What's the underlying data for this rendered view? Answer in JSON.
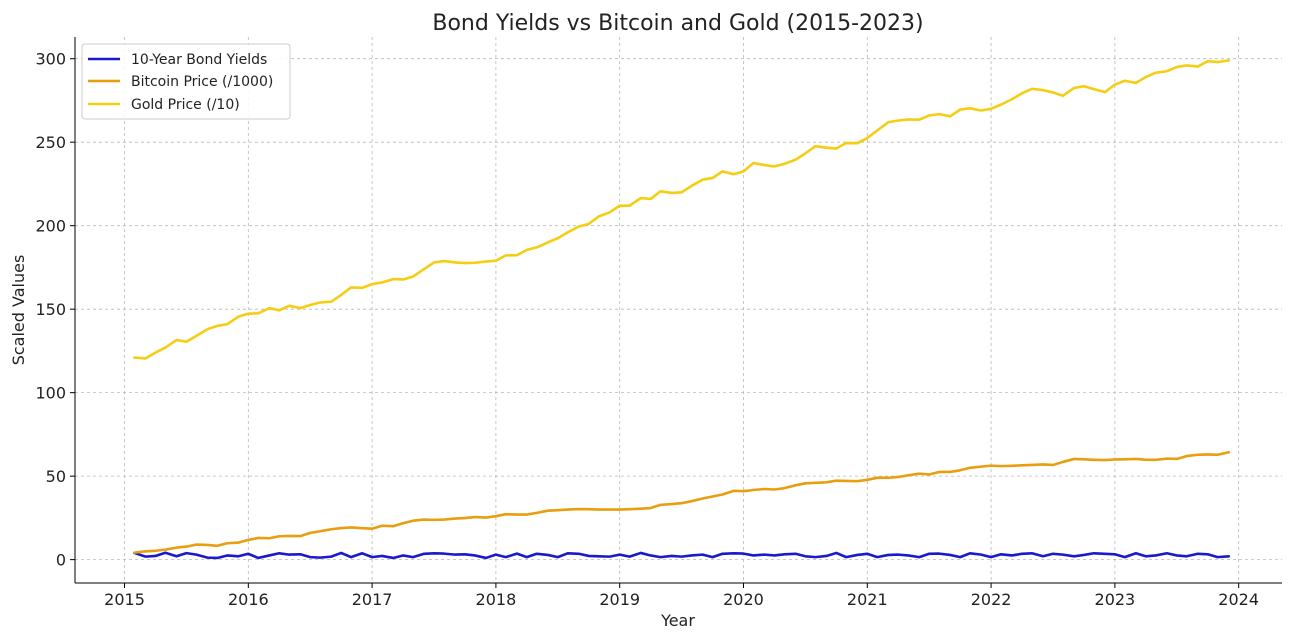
{
  "chart_data": {
    "type": "line",
    "title": "Bond Yields vs Bitcoin and Gold (2015-2023)",
    "xlabel": "Year",
    "ylabel": "Scaled Values",
    "xlim": [
      2014.6,
      2024.35
    ],
    "ylim": [
      -14,
      313
    ],
    "x_ticks": [
      2015,
      2016,
      2017,
      2018,
      2019,
      2020,
      2021,
      2022,
      2023,
      2024
    ],
    "x_tick_labels": [
      "2015",
      "2016",
      "2017",
      "2018",
      "2019",
      "2020",
      "2021",
      "2022",
      "2023",
      "2024"
    ],
    "y_ticks": [
      0,
      50,
      100,
      150,
      200,
      250,
      300
    ],
    "y_tick_labels": [
      "0",
      "50",
      "100",
      "150",
      "200",
      "250",
      "300"
    ],
    "grid": true,
    "legend_position": "upper-left",
    "series": [
      {
        "name": "10-Year Bond Yields",
        "color": "#1a1acc",
        "x": [
          2015.08,
          2015.17,
          2015.25,
          2015.33,
          2015.42,
          2015.5,
          2015.58,
          2015.67,
          2015.75,
          2015.83,
          2015.92,
          2016.0,
          2016.08,
          2016.17,
          2016.25,
          2016.33,
          2016.42,
          2016.5,
          2016.58,
          2016.67,
          2016.75,
          2016.83,
          2016.92,
          2017.0,
          2017.08,
          2017.17,
          2017.25,
          2017.33,
          2017.42,
          2017.5,
          2017.58,
          2017.67,
          2017.75,
          2017.83,
          2017.92,
          2018.0,
          2018.08,
          2018.17,
          2018.25,
          2018.33,
          2018.42,
          2018.5,
          2018.58,
          2018.67,
          2018.75,
          2018.83,
          2018.92,
          2019.0,
          2019.08,
          2019.17,
          2019.25,
          2019.33,
          2019.42,
          2019.5,
          2019.58,
          2019.67,
          2019.75,
          2019.83,
          2019.92,
          2020.0,
          2020.08,
          2020.17,
          2020.25,
          2020.33,
          2020.42,
          2020.5,
          2020.58,
          2020.67,
          2020.75,
          2020.83,
          2020.92,
          2021.0,
          2021.08,
          2021.17,
          2021.25,
          2021.33,
          2021.42,
          2021.5,
          2021.58,
          2021.67,
          2021.75,
          2021.83,
          2021.92,
          2022.0,
          2022.08,
          2022.17,
          2022.25,
          2022.33,
          2022.42,
          2022.5,
          2022.58,
          2022.67,
          2022.75,
          2022.83,
          2022.92,
          2023.0,
          2023.08,
          2023.17,
          2023.25,
          2023.33,
          2023.42,
          2023.5,
          2023.58,
          2023.67,
          2023.75,
          2023.83,
          2023.92
        ],
        "values": [
          4.0,
          1.8,
          2.2,
          4.1,
          2.0,
          3.9,
          3.0,
          1.2,
          1.0,
          2.5,
          2.0,
          3.5,
          1.0,
          2.5,
          3.8,
          3.0,
          3.2,
          1.5,
          1.2,
          1.8,
          4.0,
          1.5,
          3.8,
          1.5,
          2.2,
          1.0,
          2.5,
          1.5,
          3.5,
          3.8,
          3.6,
          3.0,
          3.2,
          2.5,
          1.0,
          3.0,
          1.5,
          3.6,
          1.5,
          3.5,
          2.8,
          1.5,
          3.8,
          3.5,
          2.2,
          2.0,
          1.8,
          3.0,
          1.8,
          4.0,
          2.5,
          1.5,
          2.2,
          1.8,
          2.5,
          3.0,
          1.5,
          3.5,
          3.8,
          3.6,
          2.5,
          3.0,
          2.5,
          3.2,
          3.5,
          2.0,
          1.5,
          2.2,
          4.0,
          1.5,
          2.8,
          3.5,
          1.5,
          2.8,
          3.0,
          2.5,
          1.5,
          3.5,
          3.6,
          2.8,
          1.5,
          3.8,
          3.0,
          1.5,
          3.2,
          2.5,
          3.5,
          3.8,
          2.0,
          3.5,
          3.0,
          2.0,
          2.8,
          3.8,
          3.5,
          3.2,
          1.5,
          3.8,
          2.0,
          2.5,
          3.8,
          2.5,
          2.0,
          3.5,
          3.2,
          1.5,
          2.0
        ]
      },
      {
        "name": "Bitcoin Price (/1000)",
        "color": "#e89e0f",
        "x": [
          2015.08,
          2015.17,
          2015.25,
          2015.33,
          2015.42,
          2015.5,
          2015.58,
          2015.67,
          2015.75,
          2015.83,
          2015.92,
          2016.0,
          2016.08,
          2016.17,
          2016.25,
          2016.33,
          2016.42,
          2016.5,
          2016.58,
          2016.67,
          2016.75,
          2016.83,
          2016.92,
          2017.0,
          2017.08,
          2017.17,
          2017.25,
          2017.33,
          2017.42,
          2017.5,
          2017.58,
          2017.67,
          2017.75,
          2017.83,
          2017.92,
          2018.0,
          2018.08,
          2018.17,
          2018.25,
          2018.33,
          2018.42,
          2018.5,
          2018.58,
          2018.67,
          2018.75,
          2018.83,
          2018.92,
          2019.0,
          2019.08,
          2019.17,
          2019.25,
          2019.33,
          2019.42,
          2019.5,
          2019.58,
          2019.67,
          2019.75,
          2019.83,
          2019.92,
          2020.0,
          2020.08,
          2020.17,
          2020.25,
          2020.33,
          2020.42,
          2020.5,
          2020.58,
          2020.67,
          2020.75,
          2020.83,
          2020.92,
          2021.0,
          2021.08,
          2021.17,
          2021.25,
          2021.33,
          2021.42,
          2021.5,
          2021.58,
          2021.67,
          2021.75,
          2021.83,
          2021.92,
          2022.0,
          2022.08,
          2022.17,
          2022.25,
          2022.33,
          2022.42,
          2022.5,
          2022.58,
          2022.67,
          2022.75,
          2022.83,
          2022.92,
          2023.0,
          2023.08,
          2023.17,
          2023.25,
          2023.33,
          2023.42,
          2023.5,
          2023.58,
          2023.67,
          2023.75,
          2023.83,
          2023.92
        ],
        "values": [
          4.2,
          5.0,
          5.3,
          6.0,
          7.2,
          7.8,
          9.0,
          8.8,
          8.3,
          9.8,
          10.2,
          11.8,
          13.0,
          12.8,
          14.0,
          14.2,
          14.1,
          16.0,
          17.0,
          18.2,
          18.9,
          19.3,
          18.8,
          18.5,
          20.3,
          20.0,
          21.8,
          23.3,
          24.0,
          23.8,
          24.0,
          24.6,
          24.9,
          25.5,
          25.2,
          26.0,
          27.2,
          27.0,
          27.0,
          28.0,
          29.3,
          29.6,
          30.0,
          30.3,
          30.2,
          30.0,
          30.0,
          30.0,
          30.2,
          30.5,
          30.9,
          32.8,
          33.3,
          33.8,
          35.0,
          36.6,
          37.8,
          39.0,
          41.2,
          41.0,
          41.7,
          42.3,
          42.0,
          42.8,
          44.5,
          45.7,
          46.0,
          46.3,
          47.3,
          47.1,
          47.0,
          47.8,
          49.0,
          49.0,
          49.5,
          50.5,
          51.5,
          51.0,
          52.5,
          52.5,
          53.5,
          55.0,
          55.7,
          56.3,
          56.0,
          56.2,
          56.5,
          56.7,
          57.0,
          56.7,
          58.5,
          60.3,
          60.1,
          59.8,
          59.6,
          60.0,
          60.1,
          60.3,
          59.8,
          59.8,
          60.5,
          60.3,
          62.0,
          62.8,
          63.0,
          62.8,
          64.3
        ]
      },
      {
        "name": "Gold Price (/10)",
        "color": "#f5cd12",
        "x": [
          2015.08,
          2015.17,
          2015.25,
          2015.33,
          2015.42,
          2015.5,
          2015.58,
          2015.67,
          2015.75,
          2015.83,
          2015.92,
          2016.0,
          2016.08,
          2016.17,
          2016.25,
          2016.33,
          2016.42,
          2016.5,
          2016.58,
          2016.67,
          2016.75,
          2016.83,
          2016.92,
          2017.0,
          2017.08,
          2017.17,
          2017.25,
          2017.33,
          2017.42,
          2017.5,
          2017.58,
          2017.67,
          2017.75,
          2017.83,
          2017.92,
          2018.0,
          2018.08,
          2018.17,
          2018.25,
          2018.33,
          2018.42,
          2018.5,
          2018.58,
          2018.67,
          2018.75,
          2018.83,
          2018.92,
          2019.0,
          2019.08,
          2019.17,
          2019.25,
          2019.33,
          2019.42,
          2019.5,
          2019.58,
          2019.67,
          2019.75,
          2019.83,
          2019.92,
          2020.0,
          2020.08,
          2020.17,
          2020.25,
          2020.33,
          2020.42,
          2020.5,
          2020.58,
          2020.67,
          2020.75,
          2020.83,
          2020.92,
          2021.0,
          2021.08,
          2021.17,
          2021.25,
          2021.33,
          2021.42,
          2021.5,
          2021.58,
          2021.67,
          2021.75,
          2021.83,
          2021.92,
          2022.0,
          2022.08,
          2022.17,
          2022.25,
          2022.33,
          2022.42,
          2022.5,
          2022.58,
          2022.67,
          2022.75,
          2022.83,
          2022.92,
          2023.0,
          2023.08,
          2023.17,
          2023.25,
          2023.33,
          2023.42,
          2023.5,
          2023.58,
          2023.67,
          2023.75,
          2023.83,
          2023.92
        ],
        "values": [
          121.0,
          120.5,
          124.0,
          127.0,
          131.5,
          130.5,
          134.0,
          138.0,
          140.0,
          141.0,
          145.5,
          147.3,
          147.5,
          150.6,
          149.3,
          152.0,
          150.6,
          152.5,
          154.0,
          154.5,
          158.5,
          163.0,
          162.8,
          165.0,
          166.0,
          168.0,
          167.8,
          169.5,
          174.0,
          178.0,
          178.8,
          178.0,
          177.6,
          177.8,
          178.5,
          179.0,
          182.2,
          182.3,
          185.5,
          187.0,
          190.0,
          192.5,
          196.0,
          199.5,
          201.0,
          205.5,
          208.0,
          212.0,
          212.0,
          216.5,
          216.0,
          220.6,
          219.6,
          220.0,
          223.8,
          227.6,
          228.5,
          232.5,
          230.8,
          232.5,
          237.5,
          236.3,
          235.5,
          237.0,
          239.5,
          243.3,
          247.6,
          246.7,
          246.2,
          249.5,
          249.4,
          252.5,
          257.0,
          262.0,
          263.0,
          263.6,
          263.5,
          266.0,
          266.8,
          265.5,
          269.5,
          270.3,
          269.0,
          270.0,
          272.5,
          275.8,
          279.3,
          282.0,
          281.2,
          279.8,
          277.8,
          282.5,
          283.5,
          281.8,
          280.0,
          284.5,
          286.8,
          285.5,
          289.0,
          291.6,
          292.5,
          295.0,
          296.0,
          295.3,
          298.5,
          298.0,
          299.0
        ]
      }
    ]
  }
}
